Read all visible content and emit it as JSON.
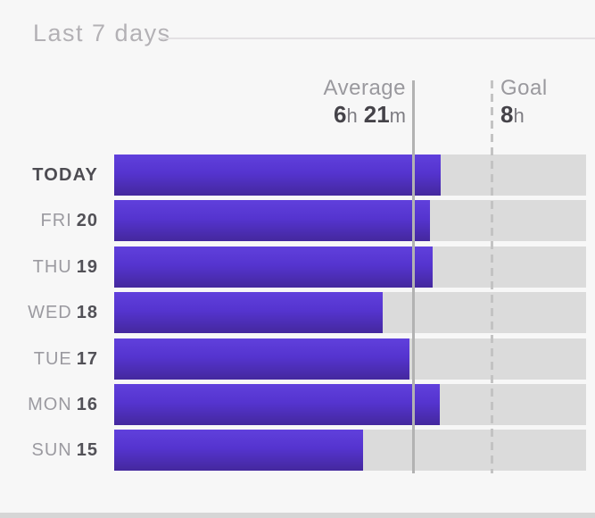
{
  "header": {
    "title": "Last 7 days"
  },
  "annotations": {
    "average": {
      "label": "Average",
      "hours": "6",
      "hours_unit": "h",
      "minutes": "21",
      "minutes_unit": "m"
    },
    "goal": {
      "label": "Goal",
      "value": "8",
      "unit": "h"
    }
  },
  "chart_data": {
    "type": "bar",
    "orientation": "horizontal",
    "title": "Last 7 days",
    "categories": [
      "TODAY",
      "FRI 20",
      "THU 19",
      "WED 18",
      "TUE 17",
      "MON 16",
      "SUN 15"
    ],
    "days": [
      {
        "name": "TODAY",
        "num": "",
        "emphasis": true,
        "hours": 6.92
      },
      {
        "name": "FRI",
        "num": "20",
        "emphasis": false,
        "hours": 6.69
      },
      {
        "name": "THU",
        "num": "19",
        "emphasis": false,
        "hours": 6.75
      },
      {
        "name": "WED",
        "num": "18",
        "emphasis": false,
        "hours": 5.69
      },
      {
        "name": "TUE",
        "num": "17",
        "emphasis": false,
        "hours": 6.26
      },
      {
        "name": "MON",
        "num": "16",
        "emphasis": false,
        "hours": 6.9
      },
      {
        "name": "SUN",
        "num": "15",
        "emphasis": false,
        "hours": 5.28
      }
    ],
    "values_hours": [
      6.92,
      6.69,
      6.75,
      5.69,
      6.26,
      6.9,
      5.28
    ],
    "average_hours": 6.35,
    "average_label": "6h 21m",
    "goal_hours": 8,
    "goal_label": "8h",
    "axis": {
      "min": 0,
      "max": 10,
      "unit": "hours",
      "gridlines": false
    },
    "legend": "none",
    "colors": {
      "bar_top": "#6040dc",
      "bar_mid": "#5534cf",
      "bar_bottom": "#44289d",
      "track": "#dbdbdb",
      "average_line": "#b2b2b2",
      "goal_line": "#c3c3c3",
      "background": "#f7f7f7"
    }
  }
}
